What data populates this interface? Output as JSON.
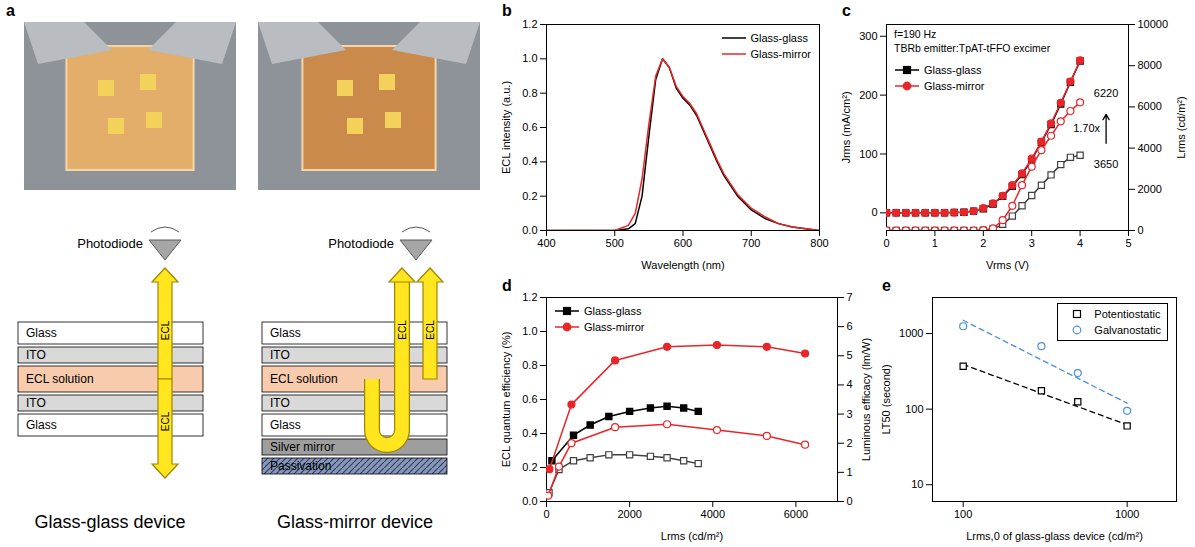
{
  "diagram": {
    "panel": "a",
    "photodiode": "Photodiode",
    "arrow_label": "ECL",
    "devices": [
      {
        "caption": "Glass-glass device",
        "layers": [
          "Glass",
          "ITO",
          "ECL solution",
          "ITO",
          "Glass"
        ]
      },
      {
        "caption": "Glass-mirror device",
        "layers": [
          "Glass",
          "ITO",
          "ECL solution",
          "ITO",
          "Glass",
          "Silver mirror",
          "Passivation"
        ]
      }
    ]
  },
  "chart_data": [
    {
      "panel": "b",
      "type": "line",
      "xlabel": "Wavelength (nm)",
      "ylabel": "ECL intensity (a.u.)",
      "x": [
        400,
        500,
        520,
        530,
        540,
        550,
        560,
        570,
        580,
        590,
        600,
        610,
        620,
        630,
        640,
        650,
        660,
        680,
        700,
        720,
        740,
        760,
        780,
        800
      ],
      "series": [
        {
          "name": "Glass-glass",
          "color": "#000000",
          "values": [
            0,
            0,
            0.01,
            0.04,
            0.2,
            0.55,
            0.88,
            1.0,
            0.95,
            0.83,
            0.77,
            0.73,
            0.67,
            0.58,
            0.49,
            0.4,
            0.32,
            0.2,
            0.12,
            0.07,
            0.04,
            0.02,
            0.01,
            0.0
          ]
        },
        {
          "name": "Glass-mirror",
          "color": "#e8262a",
          "values": [
            0,
            0,
            0.03,
            0.1,
            0.3,
            0.62,
            0.9,
            1.0,
            0.95,
            0.84,
            0.78,
            0.74,
            0.68,
            0.59,
            0.5,
            0.41,
            0.33,
            0.21,
            0.13,
            0.08,
            0.04,
            0.02,
            0.01,
            0.0
          ]
        }
      ],
      "xlim": [
        400,
        800
      ],
      "xticks": [
        400,
        500,
        600,
        700,
        800
      ],
      "ylim": [
        0,
        1.2
      ],
      "yticks": [
        {
          "value": 0,
          "label": "0.0"
        },
        0.2,
        0.4,
        0.6,
        0.8,
        {
          "value": 1,
          "label": "1.0"
        },
        1.2
      ],
      "legend": "upper right"
    },
    {
      "panel": "c",
      "type": "line",
      "xlabel": "Vrms (V)",
      "ylabel": "Jrms (mA/cm²)",
      "y2label": "Lrms (cd/m²)",
      "annotations": [
        {
          "text": "f=190 Hz"
        },
        {
          "text": "TBRb emitter:TpAT-tFFO excimer"
        },
        {
          "text": "6220",
          "x": 4,
          "y": 6220,
          "axis": "y2"
        },
        {
          "text": "3650",
          "x": 4,
          "y": 3650,
          "axis": "y2"
        },
        {
          "text": "1.70x",
          "x": 4,
          "from": 3650,
          "to": 6220,
          "axis": "y2"
        }
      ],
      "x": [
        0,
        0.2,
        0.4,
        0.6,
        0.8,
        1,
        1.2,
        1.4,
        1.6,
        1.8,
        2,
        2.2,
        2.4,
        2.6,
        2.8,
        3,
        3.2,
        3.4,
        3.6,
        3.8,
        4
      ],
      "series": [
        {
          "name": "Glass-glass",
          "color": "#000000",
          "marker": "square",
          "values": [
            0,
            0,
            0,
            0,
            0,
            0,
            0,
            0.5,
            1,
            3,
            7,
            15,
            28,
            45,
            65,
            90,
            120,
            150,
            185,
            222,
            258
          ]
        },
        {
          "name": "Glass-mirror",
          "color": "#e8262a",
          "marker": "circle",
          "values": [
            0,
            0,
            0,
            0,
            0,
            0,
            0,
            0.5,
            1,
            3,
            8,
            16,
            29,
            47,
            67,
            92,
            121,
            152,
            187,
            223,
            259
          ]
        },
        {
          "name": "Glass-glass",
          "color": "#404040",
          "marker": "open_square",
          "axis": "y2",
          "values": [
            0,
            0,
            0,
            0,
            0,
            0,
            0,
            0,
            0,
            0,
            10,
            60,
            300,
            700,
            1200,
            1700,
            2200,
            2700,
            3200,
            3550,
            3650
          ]
        },
        {
          "name": "Glass-mirror",
          "color": "#e8262a",
          "marker": "open_circle",
          "axis": "y2",
          "values": [
            0,
            0,
            0,
            0,
            0,
            0,
            0,
            0,
            0,
            0,
            20,
            100,
            500,
            1200,
            2200,
            3100,
            3900,
            4600,
            5300,
            5800,
            6220
          ]
        }
      ],
      "xlim": [
        0,
        5
      ],
      "xticks": [
        0,
        1,
        2,
        3,
        4,
        5
      ],
      "ylim": [
        -30,
        320
      ],
      "yticks": [
        0,
        100,
        200,
        300
      ],
      "y2lim": [
        0,
        10000
      ],
      "y2ticks": [
        0,
        2000,
        4000,
        6000,
        8000,
        10000
      ],
      "legend": "upper left"
    },
    {
      "panel": "d",
      "type": "line",
      "xlabel": "Lrms (cd/m²)",
      "ylabel": "ECL quantum efficiency (%)",
      "y2label": "Luminous efficacy (lm/W)",
      "series": [
        {
          "name": "Glass-glass",
          "color": "#000000",
          "marker": "square",
          "x": [
            130,
            650,
            1050,
            1500,
            2000,
            2500,
            2900,
            3300,
            3650
          ],
          "values": [
            0.24,
            0.39,
            0.45,
            0.5,
            0.53,
            0.55,
            0.56,
            0.55,
            0.53
          ]
        },
        {
          "name": "Glass-mirror",
          "color": "#e8262a",
          "marker": "circle",
          "x": [
            70,
            600,
            1650,
            2900,
            4100,
            5300,
            6220
          ],
          "values": [
            0.19,
            0.57,
            0.83,
            0.91,
            0.92,
            0.91,
            0.87
          ]
        },
        {
          "name": "Glass-glass",
          "color": "#404040",
          "marker": "open_square",
          "axis": "y2",
          "x": [
            60,
            300,
            650,
            1050,
            1500,
            2000,
            2500,
            2900,
            3300,
            3650
          ],
          "values": [
            0.3,
            1.1,
            1.4,
            1.5,
            1.6,
            1.6,
            1.55,
            1.5,
            1.4,
            1.3
          ]
        },
        {
          "name": "Glass-mirror",
          "color": "#e8262a",
          "marker": "open_circle",
          "axis": "y2",
          "x": [
            40,
            300,
            600,
            1650,
            2900,
            4100,
            5300,
            6220
          ],
          "values": [
            0.2,
            1.2,
            2.0,
            2.55,
            2.65,
            2.45,
            2.25,
            1.95
          ]
        }
      ],
      "xlim": [
        0,
        7000
      ],
      "xticks": [
        0,
        2000,
        4000,
        6000
      ],
      "ylim": [
        0,
        1.2
      ],
      "yticks": [
        {
          "value": 0,
          "label": "0.0"
        },
        0.2,
        0.4,
        0.6,
        0.8,
        {
          "value": 1,
          "label": "1.0"
        },
        1.2
      ],
      "y2lim": [
        0,
        7
      ],
      "y2ticks": [
        0,
        1,
        2,
        3,
        4,
        5,
        6,
        7
      ],
      "legend": "upper left"
    },
    {
      "panel": "e",
      "type": "scatter",
      "log": true,
      "xlabel": "Lrms,0 of glass-glass device (cd/m²)",
      "ylabel": "LT50 (second)",
      "x": [
        100,
        300,
        500,
        1000
      ],
      "series": [
        {
          "name": "Potentiostatic",
          "color": "#000000",
          "marker": "open_square",
          "values": [
            370,
            175,
            125,
            60
          ],
          "fit": {
            "x": [
              100,
              1000
            ],
            "values": [
              390,
              62
            ],
            "line_style": "dashed"
          }
        },
        {
          "name": "Galvanostatic",
          "color": "#4a90d9",
          "marker": "open_circle",
          "values": [
            1250,
            680,
            300,
            95
          ],
          "fit": {
            "x": [
              100,
              1000
            ],
            "values": [
              1500,
              120
            ],
            "line_style": "dashed"
          }
        }
      ],
      "xlim": [
        65,
        2000
      ],
      "xticks": [
        100,
        1000
      ],
      "ylim": [
        6,
        3000
      ],
      "yticks": [
        10,
        100,
        1000
      ],
      "legend": "upper right"
    }
  ]
}
